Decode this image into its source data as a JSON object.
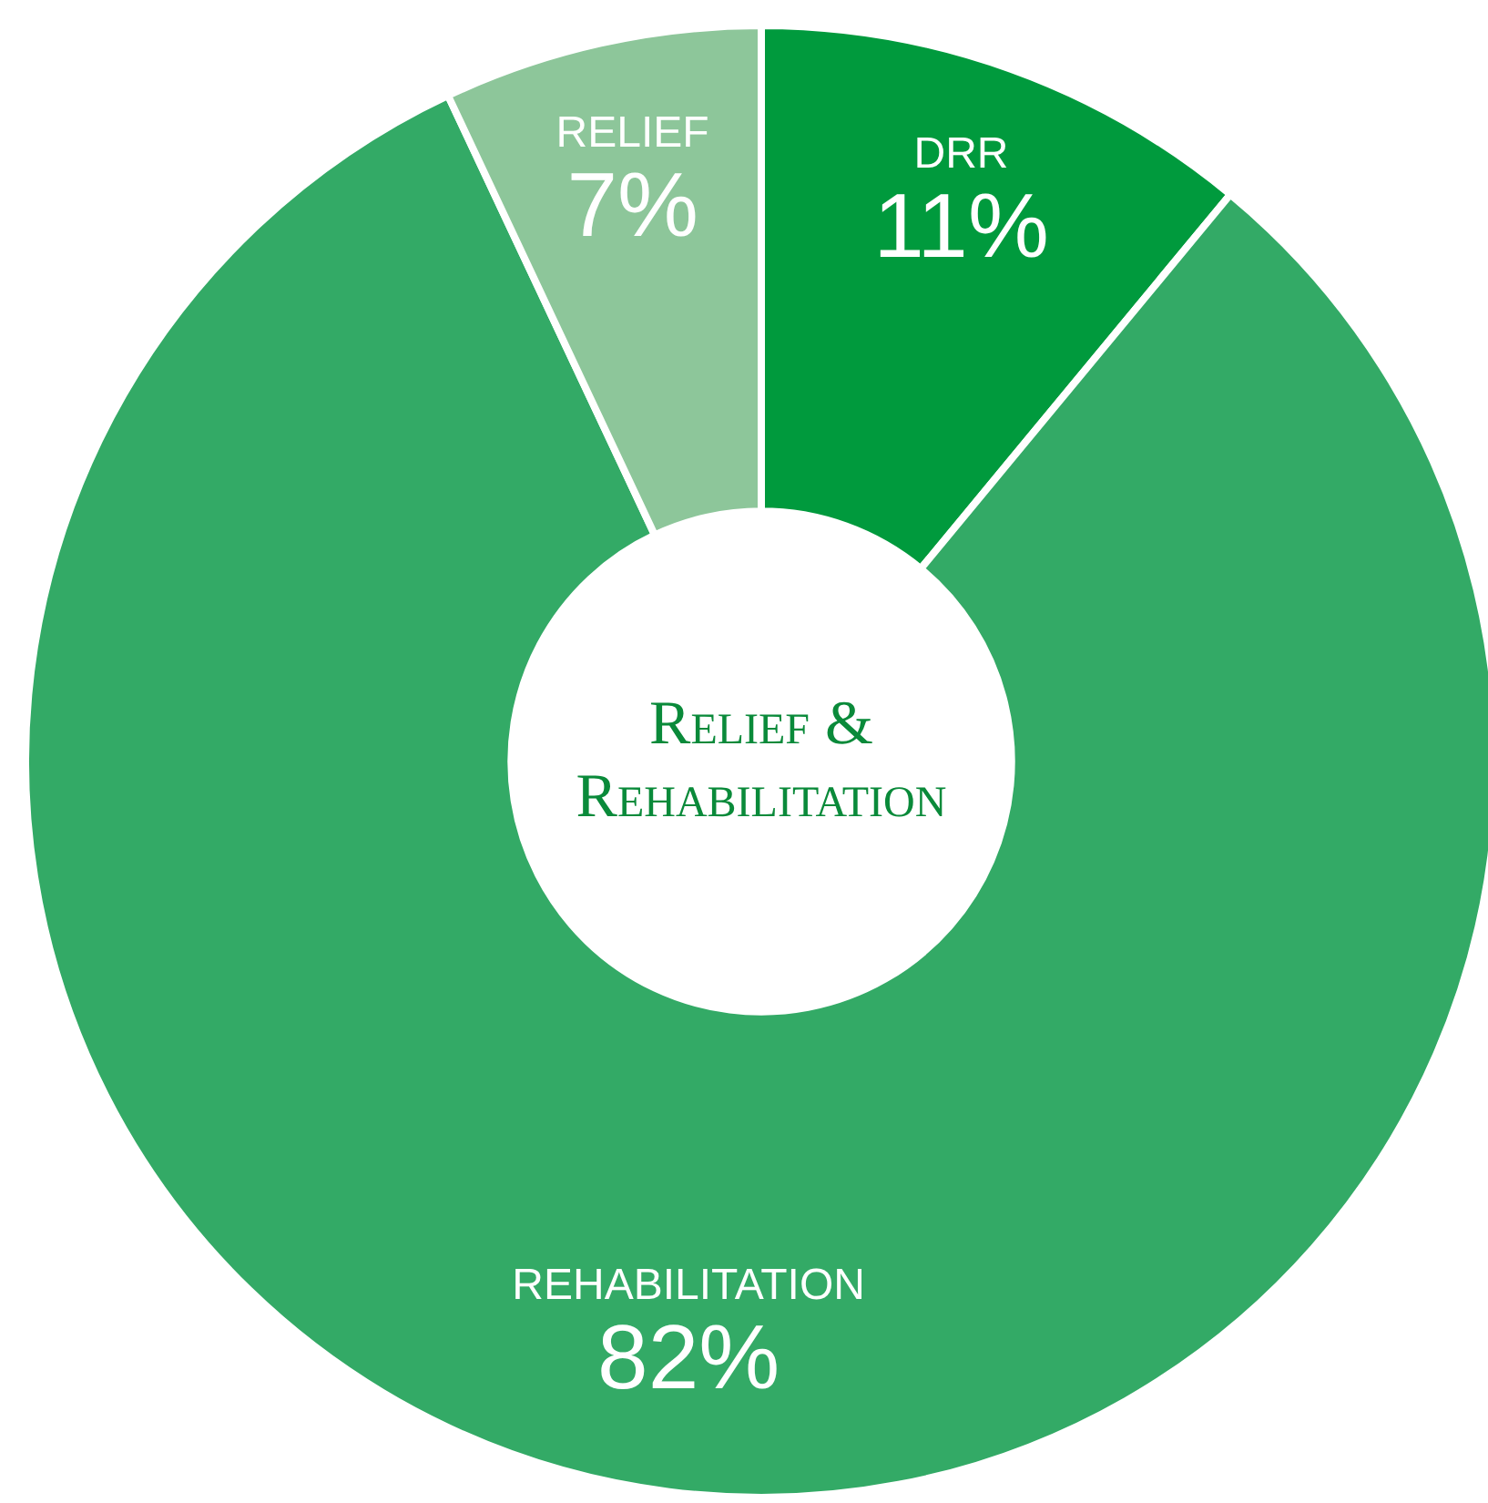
{
  "chart_data": {
    "type": "donut",
    "title": "Relief & Rehabilitation",
    "categories": [
      "DRR",
      "REHABILITATION",
      "RELIEF"
    ],
    "values": [
      11,
      82,
      7
    ],
    "colors": [
      "#009a3d",
      "#33aa66",
      "#8dc69a"
    ],
    "value_labels": [
      "11%",
      "82%",
      "7%"
    ],
    "legend": false
  }
}
